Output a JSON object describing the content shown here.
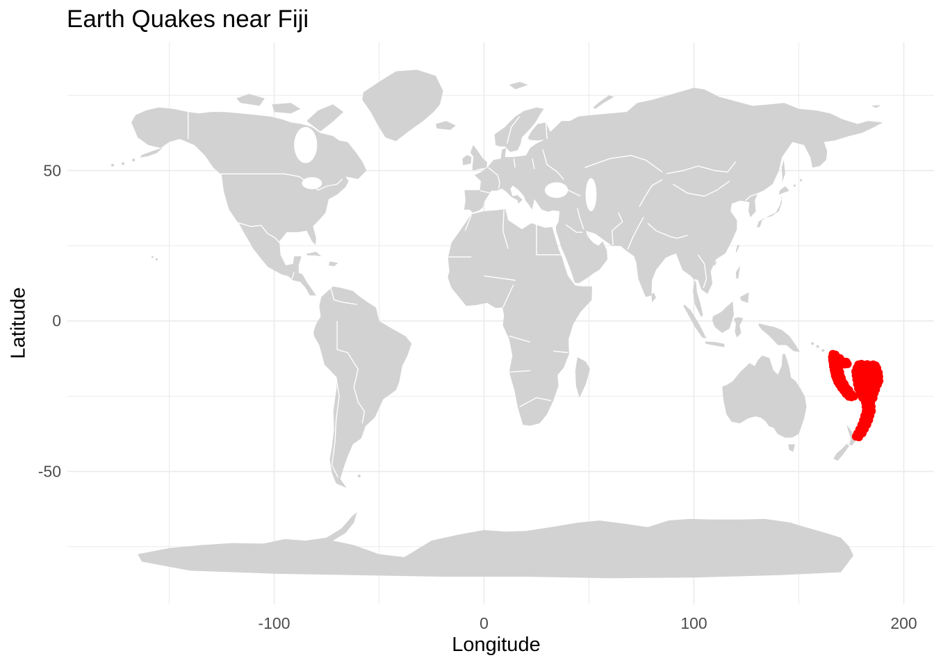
{
  "title": "Earth Quakes near Fiji",
  "axes": {
    "x": {
      "label": "Longitude",
      "ticks": [
        "-100",
        "0",
        "100",
        "200"
      ]
    },
    "y": {
      "label": "Latitude",
      "ticks": [
        "50",
        "0",
        "-50"
      ]
    }
  },
  "colors": {
    "background": "#ffffff",
    "land": "#d2d2d2",
    "country_border": "#ffffff",
    "grid": "#ebebeb",
    "tick_text": "#4d4d4d",
    "title_text": "#000000",
    "point": "#ff0000"
  },
  "chart_data": {
    "type": "scatter",
    "title": "Earth Quakes near Fiji",
    "xlabel": "Longitude",
    "ylabel": "Latitude",
    "x_ticks": [
      -100,
      0,
      100,
      200
    ],
    "y_ticks": [
      50,
      0,
      -50
    ],
    "x_minor_ticks": [
      -150,
      -50,
      50,
      150
    ],
    "y_minor_ticks": [
      75,
      25,
      -25,
      -75
    ],
    "xlim": [
      -198.5,
      214.5
    ],
    "ylim": [
      -94.5,
      92.5
    ],
    "grid": "on",
    "legend": "none",
    "basemap": "world map, gray countries with white borders",
    "point_style": {
      "color": "#ff0000",
      "radius_px": 6
    },
    "points": [
      [
        166.2,
        -11.0
      ],
      [
        167.4,
        -11.2
      ],
      [
        165.9,
        -12.0
      ],
      [
        167.1,
        -12.2
      ],
      [
        168.4,
        -12.1
      ],
      [
        169.6,
        -12.4
      ],
      [
        166.0,
        -13.1
      ],
      [
        167.3,
        -13.0
      ],
      [
        168.6,
        -13.3
      ],
      [
        170.0,
        -13.2
      ],
      [
        171.3,
        -13.5
      ],
      [
        172.6,
        -13.6
      ],
      [
        166.3,
        -14.2
      ],
      [
        167.6,
        -14.0
      ],
      [
        169.0,
        -14.3
      ],
      [
        170.4,
        -14.1
      ],
      [
        171.8,
        -14.4
      ],
      [
        173.2,
        -14.3
      ],
      [
        166.4,
        -15.1
      ],
      [
        167.7,
        -15.3
      ],
      [
        169.0,
        -15.0
      ],
      [
        166.7,
        -16.2
      ],
      [
        168.0,
        -16.0
      ],
      [
        169.2,
        -16.4
      ],
      [
        167.0,
        -17.1
      ],
      [
        168.3,
        -17.3
      ],
      [
        169.6,
        -17.0
      ],
      [
        167.3,
        -18.2
      ],
      [
        168.6,
        -18.0
      ],
      [
        169.9,
        -18.3
      ],
      [
        167.8,
        -19.1
      ],
      [
        169.1,
        -19.3
      ],
      [
        170.4,
        -19.0
      ],
      [
        168.4,
        -20.2
      ],
      [
        169.7,
        -20.0
      ],
      [
        171.0,
        -20.3
      ],
      [
        169.2,
        -21.1
      ],
      [
        170.5,
        -21.3
      ],
      [
        171.8,
        -21.0
      ],
      [
        170.2,
        -22.2
      ],
      [
        171.5,
        -22.0
      ],
      [
        172.8,
        -22.3
      ],
      [
        171.3,
        -23.1
      ],
      [
        172.6,
        -23.3
      ],
      [
        173.9,
        -23.0
      ],
      [
        172.4,
        -24.2
      ],
      [
        173.7,
        -24.0
      ],
      [
        175.0,
        -24.3
      ],
      [
        173.8,
        -25.1
      ],
      [
        175.1,
        -25.3
      ],
      [
        176.4,
        -25.0
      ],
      [
        178.4,
        -14.5
      ],
      [
        179.8,
        -14.3
      ],
      [
        181.2,
        -14.6
      ],
      [
        182.6,
        -14.4
      ],
      [
        184.0,
        -14.7
      ],
      [
        185.4,
        -14.5
      ],
      [
        186.6,
        -14.8
      ],
      [
        177.6,
        -15.6
      ],
      [
        179.0,
        -15.4
      ],
      [
        180.4,
        -15.7
      ],
      [
        181.8,
        -15.5
      ],
      [
        183.2,
        -15.8
      ],
      [
        184.6,
        -15.6
      ],
      [
        186.0,
        -15.9
      ],
      [
        187.3,
        -15.7
      ],
      [
        177.0,
        -16.8
      ],
      [
        178.4,
        -16.6
      ],
      [
        179.8,
        -16.9
      ],
      [
        181.2,
        -16.7
      ],
      [
        182.6,
        -17.0
      ],
      [
        184.0,
        -16.8
      ],
      [
        185.4,
        -17.1
      ],
      [
        186.8,
        -16.9
      ],
      [
        188.0,
        -17.2
      ],
      [
        177.2,
        -18.1
      ],
      [
        178.6,
        -17.9
      ],
      [
        180.0,
        -18.2
      ],
      [
        181.4,
        -18.0
      ],
      [
        182.8,
        -18.3
      ],
      [
        184.2,
        -18.1
      ],
      [
        185.6,
        -18.4
      ],
      [
        187.0,
        -18.2
      ],
      [
        188.2,
        -18.5
      ],
      [
        177.5,
        -19.5
      ],
      [
        178.9,
        -19.3
      ],
      [
        180.3,
        -19.6
      ],
      [
        181.7,
        -19.4
      ],
      [
        183.1,
        -19.7
      ],
      [
        184.5,
        -19.5
      ],
      [
        185.9,
        -19.8
      ],
      [
        187.3,
        -19.6
      ],
      [
        188.3,
        -19.9
      ],
      [
        177.8,
        -21.0
      ],
      [
        179.2,
        -20.8
      ],
      [
        180.6,
        -21.1
      ],
      [
        182.0,
        -20.9
      ],
      [
        183.4,
        -21.2
      ],
      [
        184.8,
        -21.0
      ],
      [
        186.2,
        -21.3
      ],
      [
        187.6,
        -21.1
      ],
      [
        178.3,
        -22.5
      ],
      [
        179.7,
        -22.3
      ],
      [
        181.1,
        -22.6
      ],
      [
        182.5,
        -22.4
      ],
      [
        183.9,
        -22.7
      ],
      [
        185.3,
        -22.5
      ],
      [
        186.7,
        -22.8
      ],
      [
        179.2,
        -24.0
      ],
      [
        180.6,
        -23.8
      ],
      [
        182.0,
        -24.1
      ],
      [
        183.4,
        -23.9
      ],
      [
        184.8,
        -24.2
      ],
      [
        186.0,
        -24.0
      ],
      [
        180.3,
        -25.5
      ],
      [
        181.7,
        -25.3
      ],
      [
        183.1,
        -25.6
      ],
      [
        184.5,
        -25.4
      ],
      [
        185.5,
        -25.6
      ],
      [
        181.6,
        -27.0
      ],
      [
        183.0,
        -27.2
      ],
      [
        184.4,
        -26.9
      ],
      [
        181.9,
        -28.5
      ],
      [
        183.3,
        -28.7
      ],
      [
        184.6,
        -28.4
      ],
      [
        182.0,
        -30.0
      ],
      [
        183.4,
        -30.2
      ],
      [
        184.7,
        -29.9
      ],
      [
        181.3,
        -31.5
      ],
      [
        182.7,
        -31.7
      ],
      [
        184.0,
        -31.4
      ],
      [
        180.7,
        -33.0
      ],
      [
        182.1,
        -33.2
      ],
      [
        183.4,
        -32.9
      ],
      [
        179.9,
        -34.5
      ],
      [
        181.3,
        -34.7
      ],
      [
        182.5,
        -34.4
      ],
      [
        178.9,
        -36.0
      ],
      [
        180.3,
        -36.2
      ],
      [
        181.4,
        -35.9
      ],
      [
        177.9,
        -37.4
      ],
      [
        179.3,
        -37.6
      ],
      [
        180.3,
        -37.3
      ],
      [
        177.3,
        -38.4
      ],
      [
        178.6,
        -38.6
      ]
    ]
  }
}
